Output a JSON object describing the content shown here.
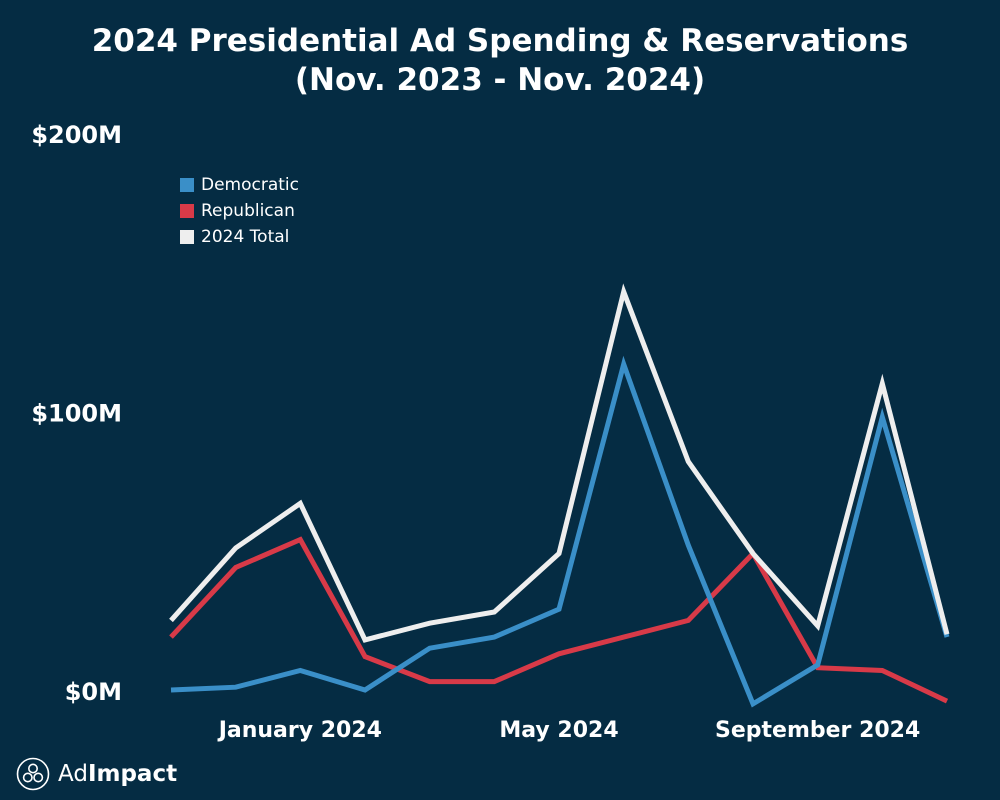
{
  "title_line1": "2024 Presidential Ad Spending & Reservations",
  "title_line2": "(Nov. 2023 - Nov. 2024)",
  "logo": {
    "part1": "Ad",
    "part2": "Impact"
  },
  "colors": {
    "background": "#052c43",
    "democratic": "#3a8fc8",
    "republican": "#d83a48",
    "total": "#eeeeee"
  },
  "chart_data": {
    "type": "line",
    "title": "2024 Presidential Ad Spending & Reservations (Nov. 2023 - Nov. 2024)",
    "x": [
      "2023-11",
      "2023-12",
      "2024-01",
      "2024-02",
      "2024-03",
      "2024-04",
      "2024-05",
      "2024-06",
      "2024-07",
      "2024-08",
      "2024-09",
      "2024-10",
      "2024-11"
    ],
    "x_ticks": [
      "January 2024",
      "May 2024",
      "September 2024"
    ],
    "y_ticks": [
      "$0M",
      "$100M",
      "$200M"
    ],
    "ylim": [
      0,
      200
    ],
    "ylabel": "",
    "xlabel": "",
    "grid": false,
    "legend_position": "top-left",
    "series": [
      {
        "name": "Democratic",
        "color": "#3a8fc8",
        "values": [
          0,
          1,
          7,
          0,
          15,
          19,
          29,
          117,
          52,
          -5,
          9,
          98,
          19
        ]
      },
      {
        "name": "Republican",
        "color": "#d83a48",
        "values": [
          19,
          44,
          54,
          12,
          3,
          3,
          13,
          19,
          25,
          49,
          8,
          7,
          -4
        ]
      },
      {
        "name": "2024 Total",
        "color": "#eeeeee",
        "values": [
          25,
          51,
          67,
          18,
          24,
          28,
          49,
          143,
          82,
          49,
          23,
          110,
          20
        ]
      }
    ]
  }
}
